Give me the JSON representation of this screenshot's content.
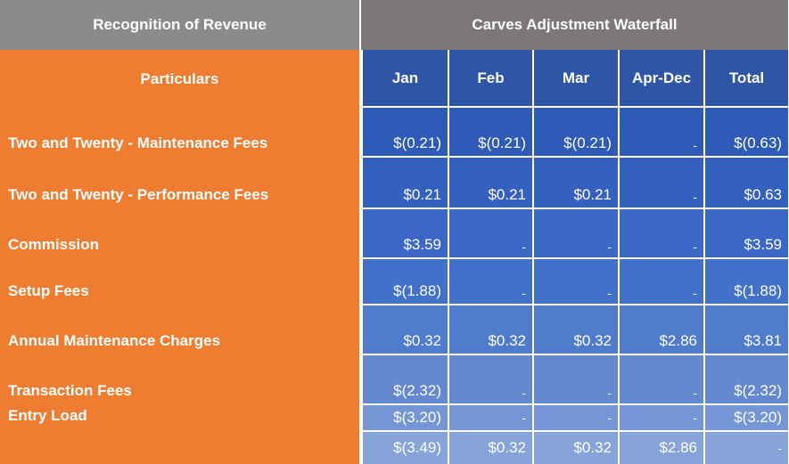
{
  "header": {
    "left": "Recognition of Revenue",
    "right": "Carves Adjustment Waterfall"
  },
  "table": {
    "particulars_label": "Particulars",
    "columns": [
      "Jan",
      "Feb",
      "Mar",
      "Apr-Dec",
      "Total"
    ],
    "rows": [
      {
        "label": "Two and Twenty - Maintenance Fees",
        "values": [
          "$(0.21)",
          "$(0.21)",
          "$(0.21)",
          "-",
          "$(0.63)"
        ]
      },
      {
        "label": "Two and Twenty - Performance Fees",
        "values": [
          "$0.21",
          "$0.21",
          "$0.21",
          "-",
          "$0.63"
        ]
      },
      {
        "label": "Commission",
        "values": [
          "$3.59",
          "-",
          "-",
          "-",
          "$3.59"
        ]
      },
      {
        "label": "Setup Fees",
        "values": [
          "$(1.88)",
          "-",
          "-",
          "-",
          "$(1.88)"
        ]
      },
      {
        "label": "Annual Maintenance Charges",
        "values": [
          "$0.32",
          "$0.32",
          "$0.32",
          "$2.86",
          "$3.81"
        ]
      },
      {
        "label": "Transaction Fees",
        "values": [
          "$(2.32)",
          "-",
          "-",
          "-",
          "$(2.32)"
        ]
      },
      {
        "label": "Entry Load",
        "values": [
          "$(3.20)",
          "-",
          "-",
          "-",
          "$(3.20)"
        ]
      }
    ],
    "totals": [
      "$(3.49)",
      "$0.32",
      "$0.32",
      "$2.86",
      "-"
    ]
  },
  "colors": {
    "header_left": "#8c8a8b",
    "header_right": "#7c7778",
    "orange": "#ee7d31",
    "column_header": "#2f56a6",
    "row_blues": [
      "#2f5bb8",
      "#3460c0",
      "#3b68c6",
      "#4171c9",
      "#4f7ccd",
      "#6489d1",
      "#7596d6",
      "#86a3da"
    ]
  }
}
